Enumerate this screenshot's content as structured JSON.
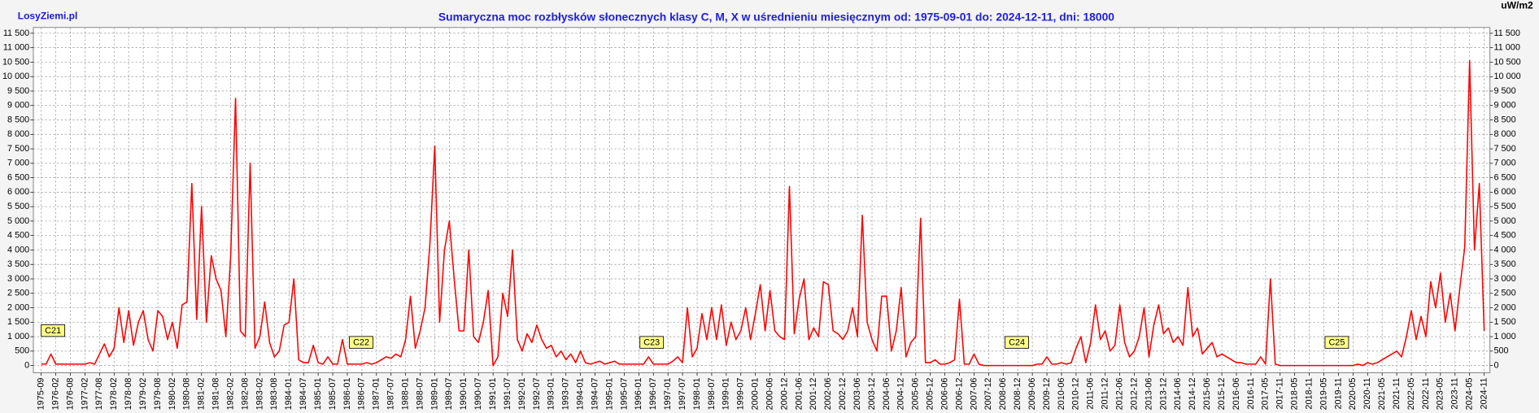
{
  "site": "LosyZiemi.pl",
  "chart_data": {
    "type": "line",
    "title": "Sumaryczna moc rozbłysków słonecznych klasy C, M, X w uśrednieniu miesięcznym od: 1975-09-01 do: 2024-12-11, dni: 18000",
    "unit": "uW/m2",
    "color": "#ff0000",
    "grid": true,
    "annotations": [
      "C21",
      "C22",
      "C23",
      "C24",
      "C25"
    ],
    "ylim": [
      -250,
      11700
    ],
    "yticks": [
      0,
      500,
      {
        "value": 1000,
        "label": "1 000"
      },
      {
        "value": 1500,
        "label": "1 500"
      },
      {
        "value": 2000,
        "label": "2 000"
      },
      {
        "value": 2500,
        "label": "2 500"
      },
      {
        "value": 3000,
        "label": "3 000"
      },
      {
        "value": 3500,
        "label": "3 500"
      },
      {
        "value": 4000,
        "label": "4 000"
      },
      {
        "value": 4500,
        "label": "4 500"
      },
      {
        "value": 5000,
        "label": "5 000"
      },
      {
        "value": 5500,
        "label": "5 500"
      },
      {
        "value": 6000,
        "label": "6 000"
      },
      {
        "value": 6500,
        "label": "6 500"
      },
      {
        "value": 7000,
        "label": "7 000"
      },
      {
        "value": 7500,
        "label": "7 500"
      },
      {
        "value": 8000,
        "label": "8 000"
      },
      {
        "value": 8500,
        "label": "8 500"
      },
      {
        "value": 9000,
        "label": "9 000"
      },
      {
        "value": 9500,
        "label": "9 500"
      },
      {
        "value": 10000,
        "label": "10 000"
      },
      {
        "value": 10500,
        "label": "10 500"
      },
      {
        "value": 11000,
        "label": "11 000"
      },
      {
        "value": 11500,
        "label": "11 500"
      }
    ],
    "categories": [
      "1975-09",
      null,
      null,
      "1976-02",
      null,
      null,
      "1976-08",
      null,
      null,
      "1977-02",
      null,
      null,
      "1977-08",
      null,
      null,
      "1978-02",
      null,
      null,
      "1978-08",
      null,
      null,
      "1979-02",
      null,
      null,
      "1979-08",
      null,
      null,
      "1980-02",
      null,
      null,
      "1980-08",
      null,
      null,
      "1981-02",
      null,
      null,
      "1981-08",
      null,
      null,
      "1982-02",
      null,
      null,
      "1982-08",
      null,
      null,
      "1983-02",
      null,
      null,
      "1983-08",
      null,
      null,
      "1984-01",
      null,
      null,
      "1984-07",
      null,
      null,
      "1985-01",
      null,
      null,
      "1985-07",
      null,
      null,
      "1986-01",
      null,
      null,
      "1986-07",
      null,
      null,
      "1987-01",
      null,
      null,
      "1987-07",
      null,
      null,
      "1988-01",
      null,
      null,
      "1988-07",
      null,
      null,
      "1989-01",
      null,
      null,
      "1989-07",
      null,
      null,
      "1990-01",
      null,
      null,
      "1990-07",
      null,
      null,
      "1991-01",
      null,
      null,
      "1991-07",
      null,
      null,
      "1992-01",
      null,
      null,
      "1992-07",
      null,
      null,
      "1993-01",
      null,
      null,
      "1993-07",
      null,
      null,
      "1994-01",
      null,
      null,
      "1994-07",
      null,
      null,
      "1995-01",
      null,
      null,
      "1995-07",
      null,
      null,
      "1996-01",
      null,
      null,
      "1996-07",
      null,
      null,
      "1997-01",
      null,
      null,
      "1997-07",
      null,
      null,
      "1998-01",
      null,
      null,
      "1998-07",
      null,
      null,
      "1999-01",
      null,
      null,
      "1999-07",
      null,
      null,
      "2000-01",
      null,
      null,
      "2000-06",
      null,
      null,
      "2000-12",
      null,
      null,
      "2001-06",
      null,
      null,
      "2001-12",
      null,
      null,
      "2002-06",
      null,
      null,
      "2002-12",
      null,
      null,
      "2003-06",
      null,
      null,
      "2003-12",
      null,
      null,
      "2004-06",
      null,
      null,
      "2004-12",
      null,
      null,
      "2005-06",
      null,
      null,
      "2005-12",
      null,
      null,
      "2006-06",
      null,
      null,
      "2006-12",
      null,
      null,
      "2007-06",
      null,
      null,
      "2007-12",
      null,
      null,
      "2008-06",
      null,
      null,
      "2008-12",
      null,
      null,
      "2009-06",
      null,
      null,
      "2009-12",
      null,
      null,
      "2010-06",
      null,
      null,
      "2010-12",
      null,
      null,
      "2011-06",
      null,
      null,
      "2011-12",
      null,
      null,
      "2012-06",
      null,
      null,
      "2012-12",
      null,
      null,
      "2013-06",
      null,
      null,
      "2013-12",
      null,
      null,
      "2014-06",
      null,
      null,
      "2014-12",
      null,
      null,
      "2015-06",
      null,
      null,
      "2015-12",
      null,
      null,
      "2016-06",
      null,
      null,
      "2016-11",
      null,
      null,
      "2017-05",
      null,
      null,
      "2017-11",
      null,
      null,
      "2018-05",
      null,
      null,
      "2018-11",
      null,
      null,
      "2019-05",
      null,
      null,
      "2019-11",
      null,
      null,
      "2020-05",
      null,
      null,
      "2020-11",
      null,
      null,
      "2021-05",
      null,
      null,
      "2021-11",
      null,
      null,
      "2022-05",
      null,
      null,
      "2022-11",
      null,
      null,
      "2023-05",
      null,
      null,
      "2023-11",
      null,
      null,
      "2024-05",
      null,
      null,
      "2024-11"
    ],
    "values": [
      50,
      50,
      400,
      50,
      50,
      50,
      50,
      50,
      50,
      50,
      100,
      50,
      400,
      750,
      300,
      600,
      2000,
      800,
      1900,
      700,
      1500,
      1900,
      900,
      500,
      1900,
      1700,
      900,
      1500,
      600,
      2100,
      2200,
      6300,
      1600,
      5500,
      1500,
      3800,
      3000,
      2600,
      1000,
      3800,
      9250,
      1200,
      1000,
      7000,
      600,
      1000,
      2200,
      800,
      300,
      500,
      1400,
      1500,
      3000,
      200,
      100,
      100,
      700,
      100,
      50,
      300,
      50,
      50,
      900,
      50,
      50,
      50,
      50,
      100,
      50,
      100,
      200,
      300,
      250,
      400,
      300,
      900,
      2400,
      600,
      1200,
      2000,
      4200,
      7600,
      1500,
      4000,
      5000,
      3000,
      1200,
      1200,
      4000,
      1000,
      800,
      1500,
      2600,
      0,
      300,
      2500,
      1700,
      4000,
      900,
      500,
      1100,
      800,
      1400,
      900,
      600,
      700,
      300,
      500,
      200,
      400,
      100,
      500,
      100,
      50,
      100,
      150,
      50,
      100,
      150,
      50,
      50,
      50,
      50,
      50,
      50,
      300,
      50,
      50,
      50,
      50,
      150,
      300,
      100,
      2000,
      300,
      600,
      1800,
      900,
      2000,
      900,
      2100,
      700,
      1500,
      900,
      1200,
      2000,
      900,
      1800,
      2800,
      1200,
      2600,
      1200,
      1000,
      900,
      6200,
      1100,
      2300,
      3000,
      900,
      1300,
      1000,
      2900,
      2800,
      1200,
      1100,
      900,
      1200,
      2000,
      1000,
      5200,
      1500,
      900,
      500,
      2400,
      2400,
      500,
      1200,
      2700,
      300,
      800,
      1000,
      5100,
      100,
      100,
      200,
      50,
      50,
      100,
      200,
      2300,
      50,
      50,
      400,
      50,
      0,
      0,
      0,
      0,
      0,
      0,
      0,
      0,
      0,
      0,
      0,
      50,
      50,
      300,
      50,
      50,
      100,
      50,
      100,
      600,
      1000,
      100,
      800,
      2100,
      900,
      1200,
      500,
      700,
      2100,
      800,
      300,
      500,
      1000,
      2000,
      300,
      1400,
      2100,
      1100,
      1300,
      800,
      1000,
      700,
      2700,
      1000,
      1300,
      400,
      600,
      800,
      300,
      400,
      300,
      200,
      100,
      100,
      50,
      50,
      50,
      300,
      50,
      3000,
      50,
      0,
      0,
      0,
      0,
      0,
      0,
      0,
      0,
      0,
      0,
      0,
      0,
      0,
      0,
      0,
      0,
      50,
      0,
      100,
      50,
      100,
      200,
      300,
      400,
      500,
      300,
      1000,
      1900,
      900,
      1700,
      1000,
      2900,
      2000,
      3200,
      1500,
      2500,
      1200,
      2700,
      4100,
      10550,
      4000,
      6300,
      1200
    ]
  }
}
